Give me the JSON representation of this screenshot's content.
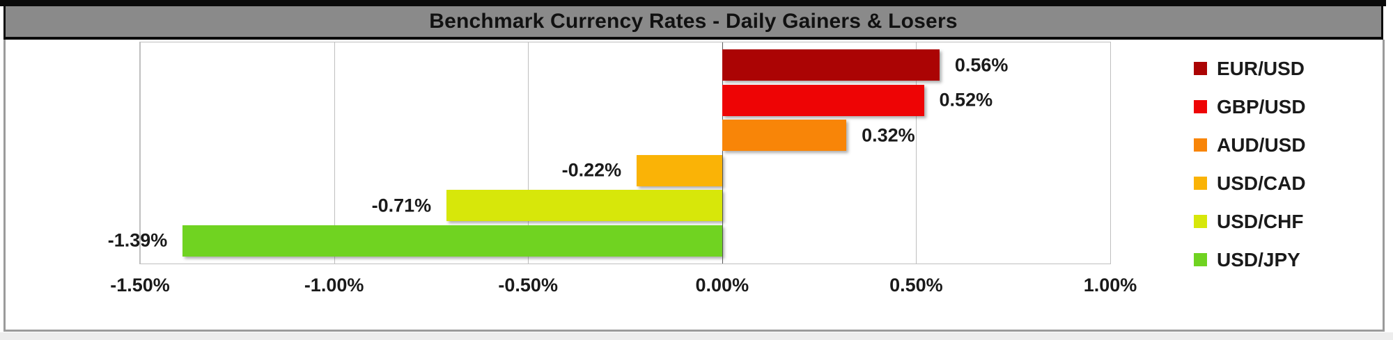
{
  "title": "Benchmark Currency Rates - Daily Gainers & Losers",
  "colors": {
    "title_bar_bg": "#8a8a8a",
    "title_text": "#111111",
    "chart_border": "#9b9b9b",
    "gridline": "#bfbfbf",
    "zero_axis": "#595959"
  },
  "chart_data": {
    "type": "bar",
    "orientation": "horizontal",
    "title": "Benchmark Currency Rates - Daily Gainers & Losers",
    "categories": [
      "EUR/USD",
      "GBP/USD",
      "AUD/USD",
      "USD/CAD",
      "USD/CHF",
      "USD/JPY"
    ],
    "values": [
      0.56,
      0.52,
      0.32,
      -0.22,
      -0.71,
      -1.39
    ],
    "data_labels": [
      "0.56%",
      "0.52%",
      "0.32%",
      "-0.22%",
      "-0.71%",
      "-1.39%"
    ],
    "colors": [
      "#ab0404",
      "#ee0405",
      "#f88508",
      "#fab306",
      "#d7e70a",
      "#70d321"
    ],
    "x_ticks": [
      "-1.50%",
      "-1.00%",
      "-0.50%",
      "0.00%",
      "0.50%",
      "1.00%"
    ],
    "xlim": [
      -1.5,
      1.0
    ],
    "xlabel": "",
    "ylabel": "",
    "grid": true,
    "legend_position": "right",
    "legend": [
      "EUR/USD",
      "GBP/USD",
      "AUD/USD",
      "USD/CAD",
      "USD/CHF",
      "USD/JPY"
    ]
  }
}
